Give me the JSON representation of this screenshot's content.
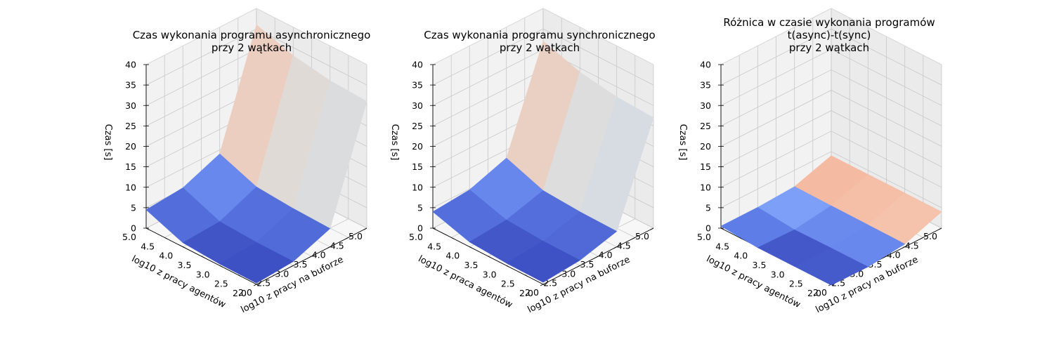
{
  "chart_data": [
    {
      "type": "surface3d",
      "title": [
        "Czas wykonania programu asynchronicznego",
        "przy 2 wątkach"
      ],
      "xlabel": "log10 z pracy na buforze",
      "ylabel": "log10 z pracy agentów",
      "zlabel": "Czas [s]",
      "x_ticks": [
        "2.0",
        "2.5",
        "3.0",
        "3.5",
        "4.0",
        "4.5",
        "5.0"
      ],
      "y_ticks": [
        "2.0",
        "2.5",
        "3.0",
        "3.5",
        "4.0",
        "4.5",
        "5.0"
      ],
      "z_ticks": [
        "0",
        "5",
        "10",
        "15",
        "20",
        "25",
        "30",
        "35",
        "40"
      ],
      "xlim": [
        2,
        5
      ],
      "ylim": [
        2,
        5
      ],
      "zlim": [
        0,
        40
      ],
      "x": [
        2,
        3,
        4,
        5
      ],
      "y": [
        2,
        3,
        4,
        5
      ],
      "z": [
        [
          0.3,
          1.0,
          4.5,
          31.0
        ],
        [
          0.4,
          1.1,
          4.8,
          31.5
        ],
        [
          1.0,
          1.6,
          5.5,
          33.0
        ],
        [
          4.5,
          5.3,
          9.0,
          36.0
        ]
      ],
      "colormap": "coolwarm",
      "color_range": [
        0.3,
        36
      ],
      "gridlines": true
    },
    {
      "type": "surface3d",
      "title": [
        "Czas wykonania programu synchronicznego",
        "przy 2 wątkach"
      ],
      "xlabel": "log10 z pracy na buforze",
      "ylabel": "log10 z praca agentów",
      "zlabel": "Czas [s]",
      "x_ticks": [
        "2.0",
        "2.5",
        "3.0",
        "3.5",
        "4.0",
        "4.5",
        "5.0"
      ],
      "y_ticks": [
        "2.0",
        "2.5",
        "3.0",
        "3.5",
        "4.0",
        "4.5",
        "5.0"
      ],
      "z_ticks": [
        "0",
        "5",
        "10",
        "15",
        "20",
        "25",
        "30",
        "35",
        "40"
      ],
      "xlim": [
        2,
        5
      ],
      "ylim": [
        2,
        5
      ],
      "zlim": [
        0,
        40
      ],
      "x": [
        2,
        3,
        4,
        5
      ],
      "y": [
        2,
        3,
        4,
        5
      ],
      "z": [
        [
          0.5,
          1.3,
          3.8,
          27.0
        ],
        [
          0.6,
          1.4,
          4.0,
          27.5
        ],
        [
          1.2,
          2.0,
          4.6,
          29.0
        ],
        [
          4.0,
          4.8,
          8.0,
          32.0
        ]
      ],
      "colormap": "coolwarm",
      "color_range": [
        0.5,
        32
      ],
      "gridlines": true
    },
    {
      "type": "surface3d",
      "title": [
        "Różnica w czasie wykonania programów",
        "t(async)-t(sync)",
        "przy 2 wątkach"
      ],
      "xlabel": "log10 z pracy na buforze",
      "ylabel": "log10 z pracy agentów",
      "zlabel": "Czas [s]",
      "x_ticks": [
        "2.0",
        "2.5",
        "3.0",
        "3.5",
        "4.0",
        "4.5",
        "5.0"
      ],
      "y_ticks": [
        "2.0",
        "2.5",
        "3.0",
        "3.5",
        "4.0",
        "4.5",
        "5.0"
      ],
      "z_ticks": [
        "0",
        "5",
        "10",
        "15",
        "20",
        "25",
        "30",
        "35",
        "40"
      ],
      "xlim": [
        2,
        5
      ],
      "ylim": [
        2,
        5
      ],
      "zlim": [
        0,
        40
      ],
      "x": [
        2,
        3,
        4,
        5
      ],
      "y": [
        2,
        3,
        4,
        5
      ],
      "z": [
        [
          -0.2,
          -0.3,
          0.7,
          4.0
        ],
        [
          -0.2,
          -0.3,
          0.8,
          4.0
        ],
        [
          -0.2,
          -0.4,
          0.9,
          4.0
        ],
        [
          0.5,
          0.5,
          1.0,
          4.0
        ]
      ],
      "colormap": "coolwarm",
      "color_range": [
        -0.4,
        4.0
      ],
      "gridlines": true
    }
  ]
}
